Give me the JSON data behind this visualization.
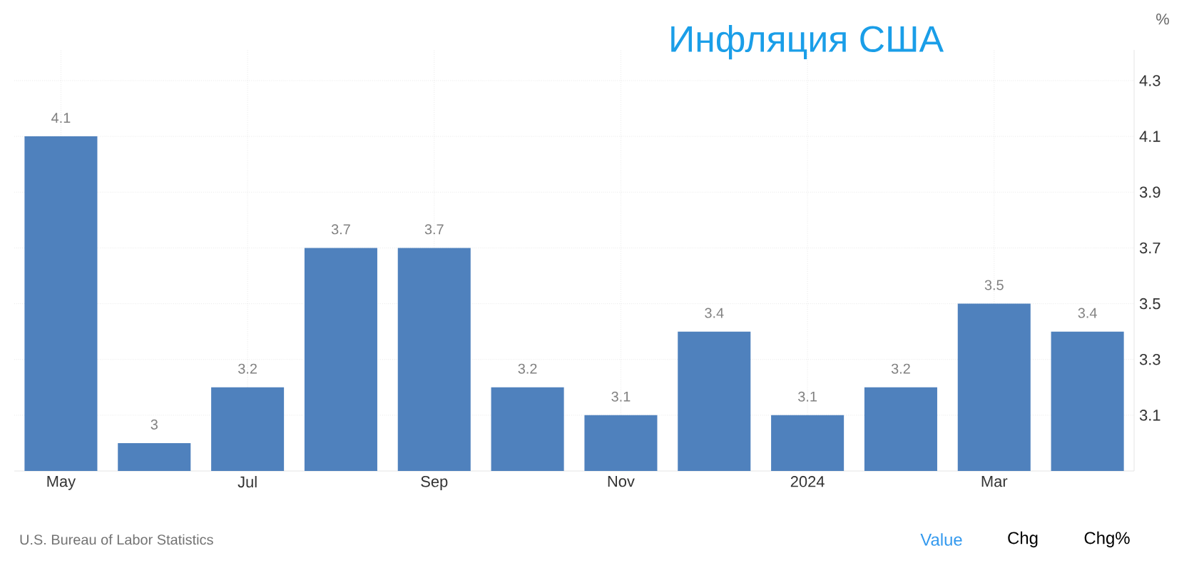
{
  "chart_data": {
    "type": "bar",
    "title": "Инфляция США",
    "ylabel": "%",
    "categories": [
      "May",
      null,
      "Jul",
      null,
      "Sep",
      null,
      "Nov",
      null,
      "2024",
      null,
      "Mar",
      null
    ],
    "values": [
      4.1,
      3,
      3.2,
      3.7,
      3.7,
      3.2,
      3.1,
      3.4,
      3.1,
      3.2,
      3.5,
      3.4
    ],
    "color": "#4f81bd",
    "ylim": [
      2.9,
      4.41
    ],
    "yticks": [
      3.1,
      3.3,
      3.5,
      3.7,
      3.9,
      4.1,
      4.3
    ],
    "grid": true,
    "data_labels": true,
    "annotations": [
      "U.S. Bureau of Labor Statistics",
      "Value",
      "Chg",
      "Chg%"
    ]
  }
}
